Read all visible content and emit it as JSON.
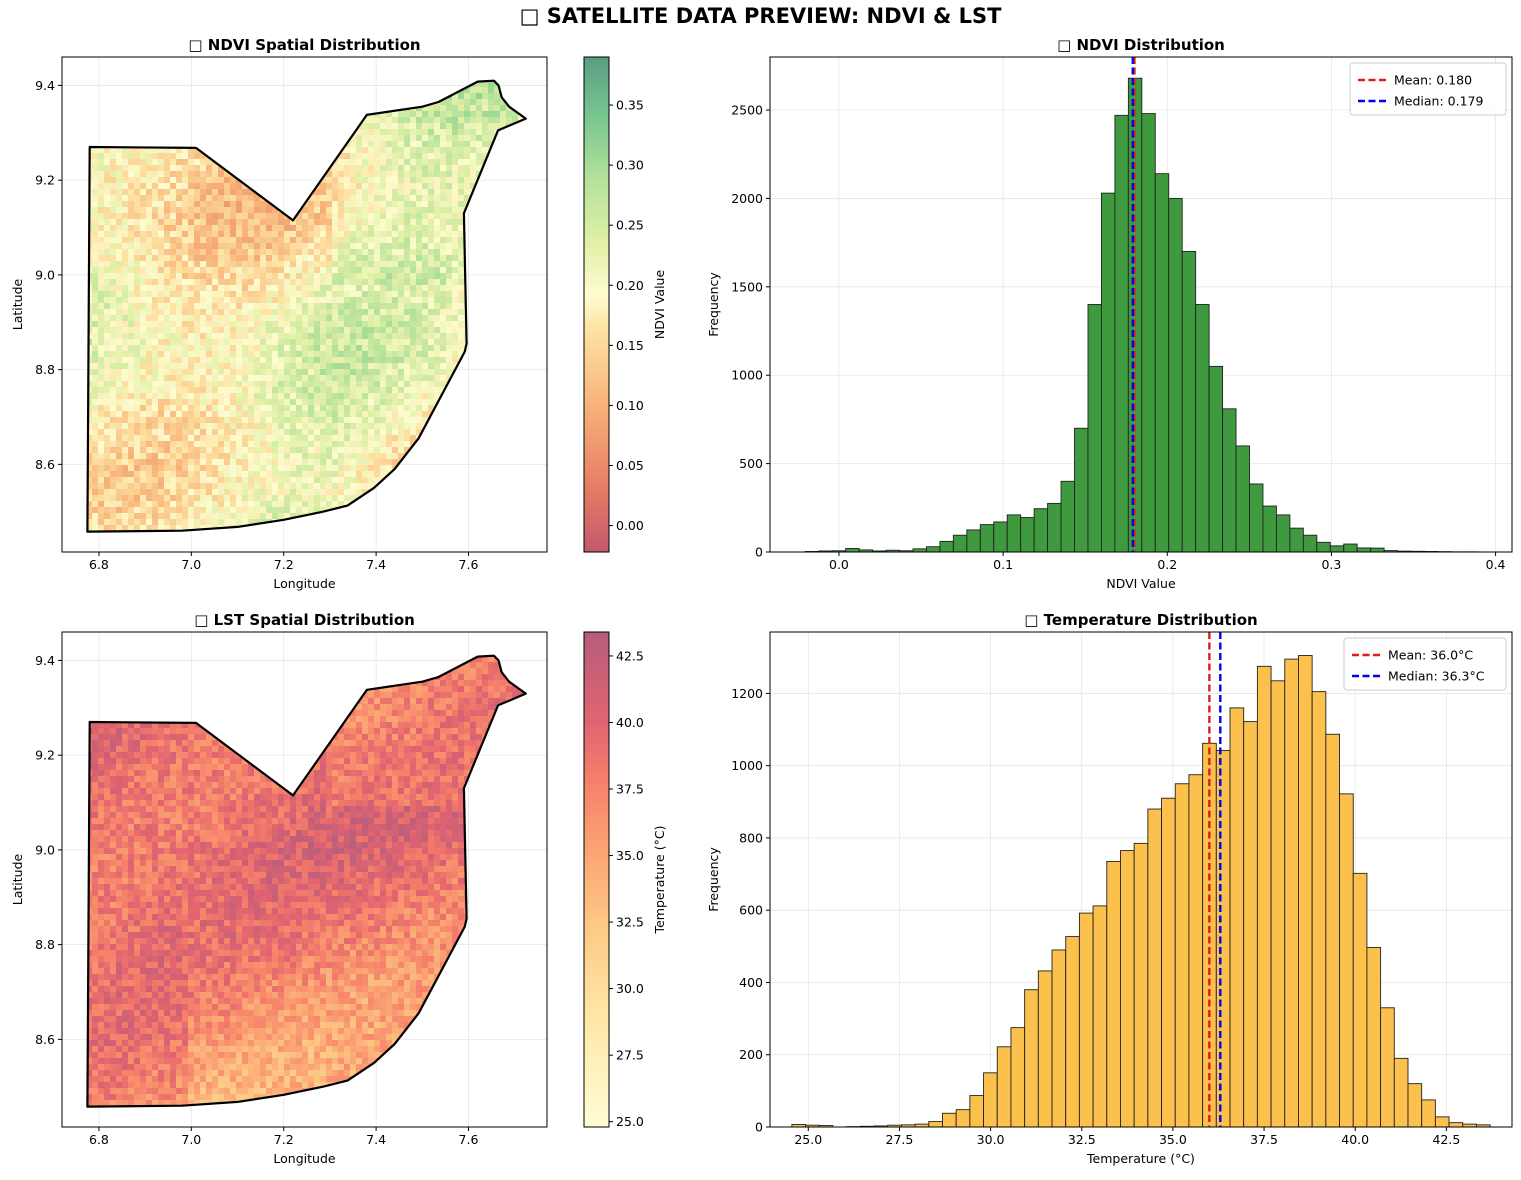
{
  "figure": {
    "title": "□ SATELLITE DATA PREVIEW: NDVI & LST"
  },
  "colors": {
    "ndvi_hist_bar": "#3f9a3f",
    "lst_hist_bar": "#fcc04c",
    "mean_line": "#e31a1c",
    "median_line": "#0000ee",
    "boundary": "#000000",
    "grid": "#e6e6e6"
  },
  "chart_data": [
    {
      "id": "ndvi-map",
      "type": "heatmap",
      "title": "□ NDVI Spatial Distribution",
      "xlabel": "Longitude",
      "ylabel": "Latitude",
      "xlim": [
        6.72,
        7.77
      ],
      "ylim": [
        8.415,
        9.46
      ],
      "xticks": [
        6.8,
        7.0,
        7.2,
        7.4,
        7.6
      ],
      "xtick_labels": [
        "6.8",
        "7.0",
        "7.2",
        "7.4",
        "7.6"
      ],
      "yticks": [
        8.6,
        8.8,
        9.0,
        9.2,
        9.4
      ],
      "ytick_labels": [
        "8.6",
        "8.8",
        "9.0",
        "9.2",
        "9.4"
      ],
      "grid": true,
      "colormap": "RdYlGn",
      "colorbar": {
        "label": "NDVI Value",
        "range": [
          -0.022,
          0.39
        ],
        "ticks": [
          0.0,
          0.05,
          0.1,
          0.15,
          0.2,
          0.25,
          0.3,
          0.35
        ],
        "tick_labels": [
          "0.00",
          "0.05",
          "0.10",
          "0.15",
          "0.20",
          "0.25",
          "0.30",
          "0.35"
        ]
      },
      "boundary": [
        [
          6.78,
          9.27
        ],
        [
          7.01,
          9.268
        ],
        [
          7.22,
          9.115
        ],
        [
          7.38,
          9.338
        ],
        [
          7.5,
          9.355
        ],
        [
          7.535,
          9.365
        ],
        [
          7.62,
          9.408
        ],
        [
          7.655,
          9.41
        ],
        [
          7.665,
          9.4
        ],
        [
          7.672,
          9.375
        ],
        [
          7.688,
          9.355
        ],
        [
          7.724,
          9.33
        ],
        [
          7.664,
          9.305
        ],
        [
          7.59,
          9.13
        ],
        [
          7.596,
          8.855
        ],
        [
          7.592,
          8.838
        ],
        [
          7.492,
          8.655
        ],
        [
          7.44,
          8.59
        ],
        [
          7.395,
          8.55
        ],
        [
          7.338,
          8.513
        ],
        [
          7.285,
          8.5
        ],
        [
          7.2,
          8.483
        ],
        [
          7.1,
          8.468
        ],
        [
          6.98,
          8.46
        ],
        [
          6.775,
          8.458
        ]
      ]
    },
    {
      "id": "ndvi-hist",
      "type": "bar",
      "title": "□ NDVI Distribution",
      "xlabel": "NDVI Value",
      "ylabel": "Frequency",
      "xlim": [
        -0.042,
        0.41
      ],
      "ylim": [
        0,
        2800
      ],
      "xticks": [
        0.0,
        0.1,
        0.2,
        0.3,
        0.4
      ],
      "xtick_labels": [
        "0.0",
        "0.1",
        "0.2",
        "0.3",
        "0.4"
      ],
      "yticks": [
        0,
        500,
        1000,
        1500,
        2000,
        2500
      ],
      "ytick_labels": [
        "0",
        "500",
        "1000",
        "1500",
        "2000",
        "2500"
      ],
      "grid": true,
      "bin_start": -0.0205,
      "bin_width": 0.0082,
      "values": [
        3,
        6,
        7,
        20,
        12,
        6,
        10,
        7,
        18,
        30,
        60,
        95,
        125,
        155,
        170,
        210,
        195,
        245,
        275,
        400,
        700,
        1400,
        2030,
        2470,
        2680,
        2480,
        2140,
        2000,
        1700,
        1400,
        1050,
        810,
        600,
        385,
        260,
        210,
        135,
        95,
        55,
        35,
        45,
        23,
        22,
        8,
        5,
        4,
        3,
        2,
        1,
        1
      ],
      "mean": 0.18,
      "median": 0.179,
      "legend": {
        "position": "upper right",
        "entries": [
          "Mean: 0.180",
          "Median: 0.179"
        ]
      }
    },
    {
      "id": "lst-map",
      "type": "heatmap",
      "title": "□ LST Spatial Distribution",
      "xlabel": "Longitude",
      "ylabel": "Latitude",
      "xlim": [
        6.72,
        7.77
      ],
      "ylim": [
        8.415,
        9.46
      ],
      "xticks": [
        6.8,
        7.0,
        7.2,
        7.4,
        7.6
      ],
      "xtick_labels": [
        "6.8",
        "7.0",
        "7.2",
        "7.4",
        "7.6"
      ],
      "yticks": [
        8.6,
        8.8,
        9.0,
        9.2,
        9.4
      ],
      "ytick_labels": [
        "8.6",
        "8.8",
        "9.0",
        "9.2",
        "9.4"
      ],
      "grid": true,
      "colormap": "YlOrRd-like",
      "colorbar": {
        "label": "Temperature (°C)",
        "range": [
          24.8,
          43.4
        ],
        "ticks": [
          25.0,
          27.5,
          30.0,
          32.5,
          35.0,
          37.5,
          40.0,
          42.5
        ],
        "tick_labels": [
          "25.0",
          "27.5",
          "30.0",
          "32.5",
          "35.0",
          "37.5",
          "40.0",
          "42.5"
        ]
      },
      "boundary": [
        [
          6.78,
          9.27
        ],
        [
          7.01,
          9.268
        ],
        [
          7.22,
          9.115
        ],
        [
          7.38,
          9.338
        ],
        [
          7.5,
          9.355
        ],
        [
          7.535,
          9.365
        ],
        [
          7.62,
          9.408
        ],
        [
          7.655,
          9.41
        ],
        [
          7.665,
          9.4
        ],
        [
          7.672,
          9.375
        ],
        [
          7.688,
          9.355
        ],
        [
          7.724,
          9.33
        ],
        [
          7.664,
          9.305
        ],
        [
          7.59,
          9.13
        ],
        [
          7.596,
          8.855
        ],
        [
          7.592,
          8.838
        ],
        [
          7.492,
          8.655
        ],
        [
          7.44,
          8.59
        ],
        [
          7.395,
          8.55
        ],
        [
          7.338,
          8.513
        ],
        [
          7.285,
          8.5
        ],
        [
          7.2,
          8.483
        ],
        [
          7.1,
          8.468
        ],
        [
          6.98,
          8.46
        ],
        [
          6.775,
          8.458
        ]
      ]
    },
    {
      "id": "lst-hist",
      "type": "bar",
      "title": "□ Temperature Distribution",
      "xlabel": "Temperature (°C)",
      "ylabel": "Frequency",
      "xlim": [
        23.95,
        44.3
      ],
      "ylim": [
        0,
        1370
      ],
      "xticks": [
        25.0,
        27.5,
        30.0,
        32.5,
        35.0,
        37.5,
        40.0,
        42.5
      ],
      "xtick_labels": [
        "25.0",
        "27.5",
        "30.0",
        "32.5",
        "35.0",
        "37.5",
        "40.0",
        "42.5"
      ],
      "yticks": [
        0,
        200,
        400,
        600,
        800,
        1000,
        1200
      ],
      "ytick_labels": [
        "0",
        "200",
        "400",
        "600",
        "800",
        "1000",
        "1200"
      ],
      "grid": true,
      "bin_start": 24.55,
      "bin_width": 0.3755,
      "values": [
        7,
        5,
        4,
        0,
        1,
        2,
        3,
        5,
        6,
        8,
        15,
        38,
        48,
        87,
        150,
        222,
        275,
        380,
        432,
        490,
        527,
        592,
        612,
        735,
        765,
        785,
        880,
        910,
        950,
        975,
        1062,
        1042,
        1160,
        1122,
        1275,
        1235,
        1295,
        1305,
        1205,
        1087,
        922,
        702,
        497,
        330,
        190,
        120,
        75,
        28,
        12,
        8,
        6
      ],
      "mean": 36.0,
      "median": 36.3,
      "legend": {
        "position": "upper right",
        "entries": [
          "Mean: 36.0°C",
          "Median: 36.3°C"
        ]
      }
    }
  ]
}
